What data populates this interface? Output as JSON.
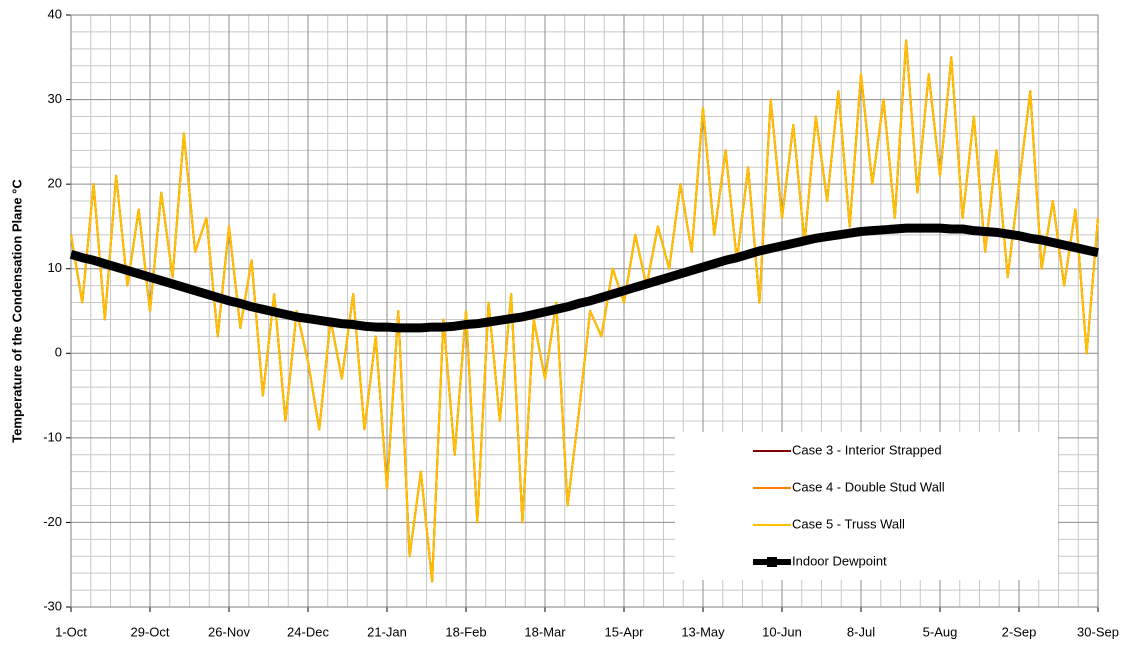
{
  "chart_data": {
    "type": "line",
    "y_label": "Temperature of the Condensation Plane °C",
    "x": [
      0,
      4,
      8,
      12,
      16,
      20,
      24,
      28,
      32,
      36,
      40,
      44,
      48,
      52,
      56,
      60,
      64,
      68,
      72,
      76,
      80,
      84,
      88,
      92,
      96,
      100,
      104,
      108,
      112,
      116,
      120,
      124,
      128,
      132,
      136,
      140,
      144,
      148,
      152,
      156,
      160,
      164,
      168,
      172,
      176,
      180,
      184,
      188,
      192,
      196,
      200,
      204,
      208,
      212,
      216,
      220,
      224,
      228,
      232,
      236,
      240,
      244,
      248,
      252,
      256,
      260,
      264,
      268,
      272,
      276,
      280,
      284,
      288,
      292,
      296,
      300,
      304,
      308,
      312,
      316,
      320,
      324,
      328,
      332,
      336,
      340,
      344,
      348,
      352,
      356,
      360,
      364
    ],
    "xlim": [
      0,
      364
    ],
    "xticks": [
      {
        "value": 0,
        "label": "1-Oct"
      },
      {
        "value": 28,
        "label": "29-Oct"
      },
      {
        "value": 56,
        "label": "26-Nov"
      },
      {
        "value": 84,
        "label": "24-Dec"
      },
      {
        "value": 112,
        "label": "21-Jan"
      },
      {
        "value": 140,
        "label": "18-Feb"
      },
      {
        "value": 168,
        "label": "18-Mar"
      },
      {
        "value": 196,
        "label": "15-Apr"
      },
      {
        "value": 224,
        "label": "13-May"
      },
      {
        "value": 252,
        "label": "10-Jun"
      },
      {
        "value": 280,
        "label": "8-Jul"
      },
      {
        "value": 308,
        "label": "5-Aug"
      },
      {
        "value": 336,
        "label": "2-Sep"
      },
      {
        "value": 364,
        "label": "30-Sep"
      }
    ],
    "ylim": [
      -30,
      40
    ],
    "yticks": [
      -30,
      -20,
      -10,
      0,
      10,
      20,
      30,
      40
    ],
    "grid": true,
    "legend": "lower right",
    "series": [
      {
        "name": "Case 3 - Interior Strapped",
        "color": "#7f0000",
        "line_width": 2,
        "values": [
          14,
          6,
          20,
          4,
          21,
          8,
          17,
          5,
          19,
          9,
          26,
          12,
          16,
          2,
          15,
          3,
          11,
          -5,
          7,
          -8,
          5,
          -1,
          -9,
          4,
          -3,
          7,
          -9,
          2,
          -16,
          5,
          -24,
          -14,
          -27,
          4,
          -12,
          5,
          -20,
          6,
          -8,
          7,
          -20,
          4,
          -3,
          6,
          -18,
          -7,
          5,
          2,
          10,
          6,
          14,
          8,
          15,
          10,
          20,
          12,
          29,
          14,
          24,
          11,
          22,
          6,
          30,
          16,
          27,
          13,
          28,
          18,
          31,
          15,
          33,
          20,
          30,
          16,
          37,
          19,
          33,
          21,
          35,
          16,
          28,
          12,
          24,
          9,
          20,
          31,
          10,
          18,
          8,
          17,
          0,
          16
        ]
      },
      {
        "name": "Case 4 - Double Stud Wall",
        "color": "#ff8000",
        "line_width": 2,
        "values": [
          14,
          6,
          20,
          4,
          21,
          8,
          17,
          5,
          19,
          9,
          26,
          12,
          16,
          2,
          15,
          3,
          11,
          -5,
          7,
          -8,
          5,
          -1,
          -9,
          4,
          -3,
          7,
          -9,
          2,
          -16,
          5,
          -24,
          -14,
          -27,
          4,
          -12,
          5,
          -20,
          6,
          -8,
          7,
          -20,
          4,
          -3,
          6,
          -18,
          -7,
          5,
          2,
          10,
          6,
          14,
          8,
          15,
          10,
          20,
          12,
          29,
          14,
          24,
          11,
          22,
          6,
          30,
          16,
          27,
          13,
          28,
          18,
          31,
          15,
          33,
          20,
          30,
          16,
          37,
          19,
          33,
          21,
          35,
          16,
          28,
          12,
          24,
          9,
          20,
          31,
          10,
          18,
          8,
          17,
          0,
          16
        ]
      },
      {
        "name": "Case 5 - Truss Wall",
        "color": "#ffc000",
        "line_width": 2,
        "values": [
          14,
          6,
          20,
          4,
          21,
          8,
          17,
          5,
          19,
          9,
          26,
          12,
          16,
          2,
          15,
          3,
          11,
          -5,
          7,
          -8,
          5,
          -1,
          -9,
          4,
          -3,
          7,
          -9,
          2,
          -16,
          5,
          -24,
          -14,
          -27,
          4,
          -12,
          5,
          -20,
          6,
          -8,
          7,
          -20,
          4,
          -3,
          6,
          -18,
          -7,
          5,
          2,
          10,
          6,
          14,
          8,
          15,
          10,
          20,
          12,
          29,
          14,
          24,
          11,
          22,
          6,
          30,
          16,
          27,
          13,
          28,
          18,
          31,
          15,
          33,
          20,
          30,
          16,
          37,
          19,
          33,
          21,
          35,
          16,
          28,
          12,
          24,
          9,
          20,
          31,
          10,
          18,
          8,
          17,
          0,
          16
        ]
      },
      {
        "name": "Indoor Dewpoint",
        "color": "#000000",
        "line_width": 9,
        "values": [
          11.7,
          11.3,
          11.0,
          10.6,
          10.2,
          9.8,
          9.4,
          9.0,
          8.6,
          8.2,
          7.8,
          7.4,
          7.0,
          6.6,
          6.2,
          5.9,
          5.5,
          5.2,
          4.9,
          4.6,
          4.3,
          4.1,
          3.9,
          3.7,
          3.5,
          3.4,
          3.2,
          3.1,
          3.1,
          3.0,
          3.0,
          3.0,
          3.1,
          3.1,
          3.2,
          3.4,
          3.5,
          3.7,
          3.9,
          4.1,
          4.3,
          4.6,
          4.9,
          5.2,
          5.5,
          5.9,
          6.2,
          6.6,
          7.0,
          7.4,
          7.8,
          8.2,
          8.6,
          9.0,
          9.4,
          9.8,
          10.2,
          10.6,
          11.0,
          11.3,
          11.7,
          12.1,
          12.4,
          12.7,
          13.0,
          13.3,
          13.6,
          13.8,
          14.0,
          14.2,
          14.4,
          14.5,
          14.6,
          14.7,
          14.8,
          14.8,
          14.8,
          14.8,
          14.7,
          14.7,
          14.5,
          14.4,
          14.3,
          14.1,
          13.9,
          13.6,
          13.4,
          13.1,
          12.8,
          12.5,
          12.2,
          11.9
        ]
      }
    ]
  }
}
